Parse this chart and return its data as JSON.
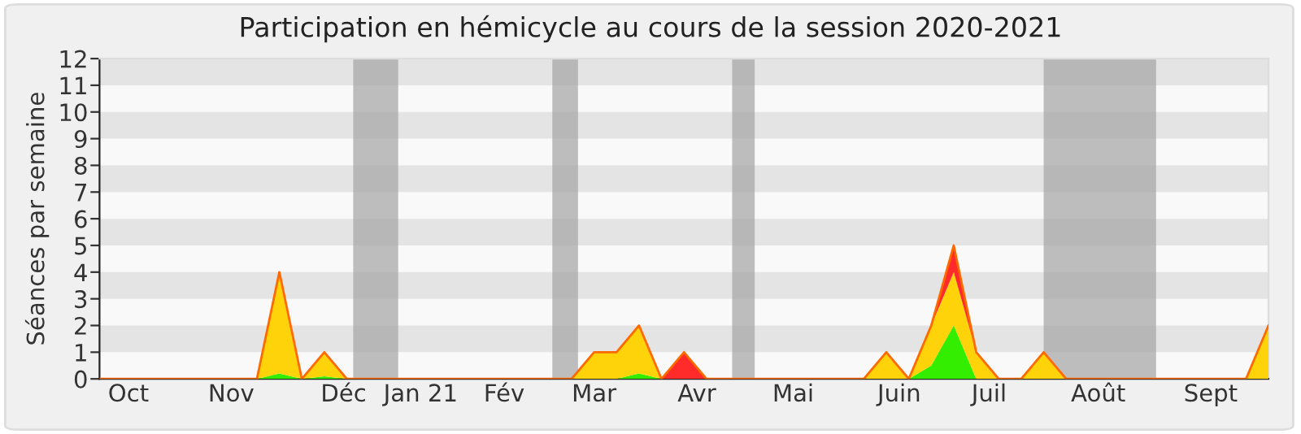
{
  "chart_data": {
    "type": "area",
    "stacked": true,
    "title": "Participation en hémicycle au cours de la session 2020-2021",
    "ylabel": "Séances par semaine",
    "x": [
      "2020-09-28",
      "2020-10-05",
      "2020-10-12",
      "2020-10-19",
      "2020-10-26",
      "2020-11-02",
      "2020-11-09",
      "2020-11-16",
      "2020-11-23",
      "2020-11-30",
      "2020-12-07",
      "2020-12-14",
      "2020-12-21",
      "2020-12-28",
      "2021-01-04",
      "2021-01-11",
      "2021-01-18",
      "2021-01-25",
      "2021-02-01",
      "2021-02-08",
      "2021-02-15",
      "2021-02-22",
      "2021-03-01",
      "2021-03-08",
      "2021-03-15",
      "2021-03-22",
      "2021-03-29",
      "2021-04-05",
      "2021-04-12",
      "2021-04-19",
      "2021-04-26",
      "2021-05-03",
      "2021-05-10",
      "2021-05-17",
      "2021-05-24",
      "2021-05-31",
      "2021-06-07",
      "2021-06-14",
      "2021-06-21",
      "2021-06-28",
      "2021-07-05",
      "2021-07-12",
      "2021-07-19",
      "2021-07-26",
      "2021-08-02",
      "2021-08-09",
      "2021-08-16",
      "2021-08-23",
      "2021-08-30",
      "2021-09-06",
      "2021-09-13",
      "2021-09-20",
      "2021-09-27"
    ],
    "series": [
      {
        "color": "#33ee00",
        "values": [
          0,
          0,
          0,
          0,
          0,
          0,
          0,
          0,
          0.2,
          0,
          0.1,
          0,
          0,
          0,
          0,
          0,
          0,
          0,
          0,
          0,
          0,
          0,
          0,
          0,
          0.2,
          0,
          0,
          0,
          0,
          0,
          0,
          0,
          0,
          0,
          0,
          0,
          0,
          0.5,
          2,
          0,
          0,
          0,
          0,
          0,
          0,
          0,
          0,
          0,
          0,
          0,
          0,
          0,
          0
        ]
      },
      {
        "color": "#ffd30a",
        "values": [
          0,
          0,
          0,
          0,
          0,
          0,
          0,
          0,
          3.8,
          0,
          0.9,
          0,
          0,
          0,
          0,
          0,
          0,
          0,
          0,
          0,
          0,
          0,
          1,
          1,
          1.8,
          0,
          0,
          0,
          0,
          0,
          0,
          0,
          0,
          0,
          0,
          1,
          0,
          1.5,
          2,
          1,
          0,
          0,
          1,
          0,
          0,
          0,
          0,
          0,
          0,
          0,
          0,
          0,
          2
        ]
      },
      {
        "color": "#ff2a2a",
        "values": [
          0,
          0,
          0,
          0,
          0,
          0,
          0,
          0,
          0,
          0,
          0,
          0,
          0,
          0,
          0,
          0,
          0,
          0,
          0,
          0,
          0,
          0,
          0,
          0,
          0,
          0,
          1,
          0,
          0,
          0,
          0,
          0,
          0,
          0,
          0,
          0,
          0,
          0,
          1,
          0,
          0,
          0,
          0,
          0,
          0,
          0,
          0,
          0,
          0,
          0,
          0,
          0,
          0
        ]
      }
    ],
    "xlim": [
      "2020-09-28",
      "2021-09-27"
    ],
    "xticks": [
      {
        "value": "2020-10-07",
        "label": "Oct"
      },
      {
        "value": "2020-11-08",
        "label": "Nov"
      },
      {
        "value": "2020-12-13",
        "label": "Déc"
      },
      {
        "value": "2021-01-06",
        "label": "Jan 21"
      },
      {
        "value": "2021-02-01",
        "label": "Fév"
      },
      {
        "value": "2021-03-01",
        "label": "Mar"
      },
      {
        "value": "2021-04-02",
        "label": "Avr"
      },
      {
        "value": "2021-05-02",
        "label": "Mai"
      },
      {
        "value": "2021-06-04",
        "label": "Juin"
      },
      {
        "value": "2021-07-02",
        "label": "Juil"
      },
      {
        "value": "2021-08-05",
        "label": "Août"
      },
      {
        "value": "2021-09-09",
        "label": "Sept"
      }
    ],
    "ylim": [
      0,
      12
    ],
    "yticks": [
      0,
      1,
      2,
      3,
      4,
      5,
      6,
      7,
      8,
      9,
      10,
      11,
      12
    ],
    "bands": [
      {
        "axis": "x",
        "from": "2020-12-16",
        "to": "2020-12-30",
        "color": "#a8a8a8"
      },
      {
        "axis": "x",
        "from": "2021-02-16",
        "to": "2021-02-24",
        "color": "#a8a8a8"
      },
      {
        "axis": "x",
        "from": "2021-04-13",
        "to": "2021-04-20",
        "color": "#a8a8a8"
      },
      {
        "axis": "x",
        "from": "2021-07-19",
        "to": "2021-08-23",
        "color": "#a8a8a8"
      }
    ]
  }
}
